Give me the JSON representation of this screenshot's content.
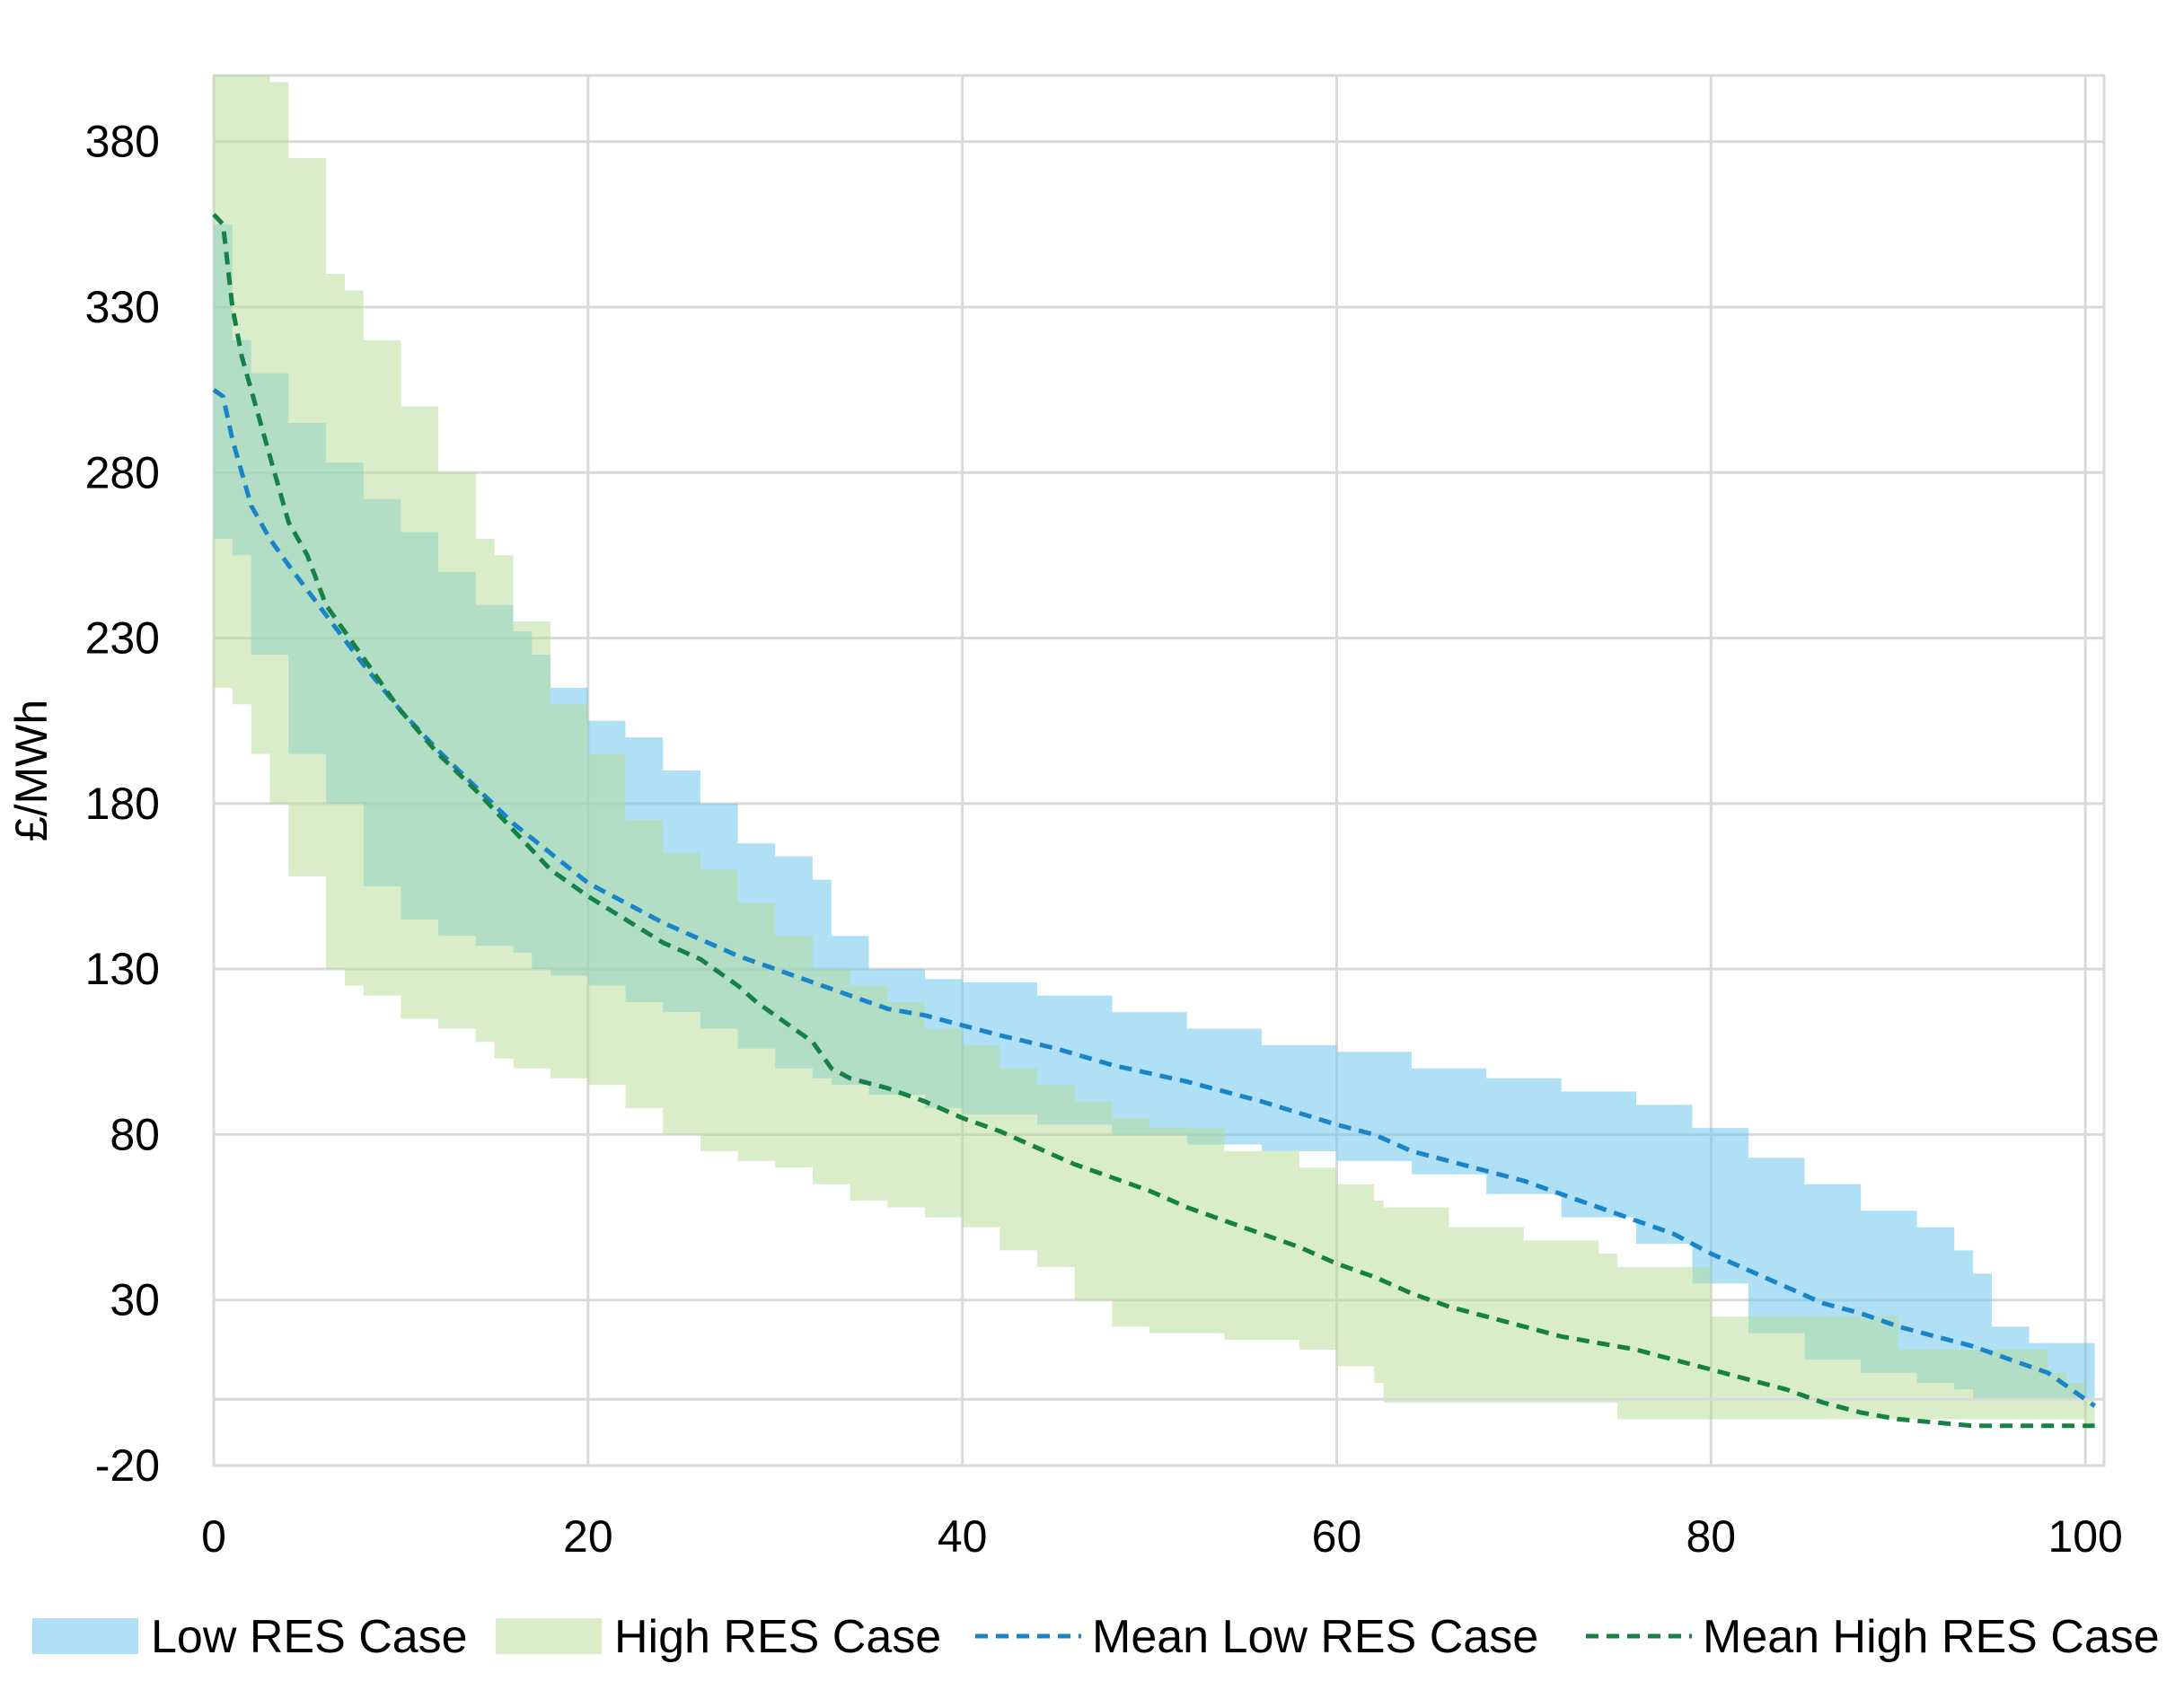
{
  "chart_data": {
    "type": "area",
    "title": "",
    "xlabel": "",
    "ylabel": "£/MWh",
    "xlim": [
      0,
      101
    ],
    "ylim": [
      -20,
      400
    ],
    "x_ticks": [
      0,
      20,
      40,
      60,
      80,
      100
    ],
    "x_tick_labels": [
      "0",
      "20",
      "40",
      "60",
      "80",
      "100"
    ],
    "y_ticks": [
      -20,
      30,
      80,
      130,
      180,
      230,
      280,
      330,
      380
    ],
    "y_tick_labels": [
      "-20",
      "30",
      "80",
      "130",
      "180",
      "230",
      "280",
      "330",
      "380"
    ],
    "grid": true,
    "zero_line": 0,
    "legend_position": "bottom",
    "colors": {
      "low_band": "#6ec6ee",
      "high_band": "#b4dc93",
      "low_mean": "#1a84c8",
      "high_mean": "#168045",
      "grid": "#d9d9d9"
    },
    "series": [
      {
        "name": "Low RES Case",
        "kind": "band",
        "x": [
          0,
          1,
          2,
          4,
          6,
          8,
          10,
          12,
          14,
          16,
          17,
          18,
          20,
          22,
          24,
          26,
          28,
          30,
          32,
          33,
          35,
          38,
          40,
          44,
          48,
          52,
          56,
          60,
          64,
          68,
          72,
          76,
          79,
          82,
          85,
          88,
          91,
          93,
          94,
          95,
          97,
          100,
          100.5
        ],
        "upper": [
          355,
          320,
          310,
          295,
          283,
          272,
          262,
          250,
          240,
          232,
          225,
          215,
          205,
          200,
          190,
          180,
          168,
          164,
          157,
          140,
          130,
          127,
          126,
          122,
          117,
          112,
          107,
          105,
          100,
          97,
          93,
          89,
          82,
          73,
          65,
          57,
          52,
          45,
          38,
          22,
          17,
          17,
          8
        ],
        "lower": [
          260,
          255,
          225,
          195,
          180,
          155,
          145,
          140,
          137,
          135,
          130,
          128,
          125,
          120,
          117,
          112,
          106,
          100,
          97,
          95,
          92,
          88,
          86,
          83,
          80,
          77,
          75,
          72,
          68,
          62,
          55,
          47,
          35,
          20,
          12,
          8,
          5,
          3,
          0,
          0,
          0,
          0,
          0
        ]
      },
      {
        "name": "High RES Case",
        "kind": "band",
        "x": [
          0,
          1,
          2,
          3,
          4,
          6,
          7,
          8,
          10,
          12,
          14,
          15,
          16,
          18,
          20,
          22,
          24,
          26,
          28,
          30,
          32,
          34,
          36,
          38,
          40,
          42,
          44,
          46,
          48,
          50,
          54,
          58,
          60,
          62,
          62.5,
          66,
          70,
          74,
          75,
          80,
          90,
          98,
          99,
          100,
          100.5
        ],
        "upper": [
          400,
          400,
          400,
          398,
          375,
          340,
          335,
          320,
          300,
          280,
          260,
          255,
          235,
          210,
          195,
          175,
          165,
          160,
          150,
          140,
          130,
          125,
          120,
          112,
          107,
          100,
          95,
          90,
          85,
          82,
          75,
          70,
          65,
          60,
          58,
          52,
          48,
          44,
          40,
          25,
          15,
          8,
          5,
          0,
          0
        ],
        "lower": [
          215,
          210,
          195,
          180,
          158,
          130,
          125,
          122,
          115,
          112,
          108,
          103,
          100,
          97,
          95,
          88,
          80,
          75,
          72,
          70,
          65,
          60,
          58,
          55,
          52,
          45,
          40,
          30,
          22,
          20,
          18,
          15,
          10,
          5,
          -1,
          -1,
          -1,
          -1,
          -6,
          -6,
          -6,
          -6,
          -6,
          -8,
          -10
        ]
      },
      {
        "name": "Mean Low RES Case",
        "kind": "line",
        "style": "dashed",
        "x": [
          0,
          0.5,
          1,
          2,
          3,
          4,
          6,
          8,
          10,
          12,
          14,
          16,
          18,
          20,
          22,
          24,
          26,
          28,
          30,
          32,
          34,
          36,
          38,
          40,
          42,
          45,
          48,
          52,
          56,
          60,
          62,
          64,
          66,
          68,
          70,
          72,
          74,
          76,
          78,
          80,
          82,
          84,
          86,
          88,
          90,
          92,
          94,
          96,
          98,
          99,
          100,
          100.5
        ],
        "values": [
          305,
          303,
          290,
          270,
          260,
          252,
          237,
          222,
          208,
          196,
          185,
          174,
          165,
          156,
          150,
          144,
          139,
          134,
          130,
          126,
          122,
          118,
          116,
          113,
          110,
          106,
          101,
          96,
          90,
          83,
          80,
          75,
          72,
          69,
          66,
          62,
          58,
          54,
          50,
          44,
          39,
          34,
          29,
          26,
          22,
          19,
          16,
          12,
          8,
          4,
          0,
          -2
        ]
      },
      {
        "name": "Mean High RES Case",
        "kind": "line",
        "style": "dashed",
        "x": [
          0,
          0.5,
          1,
          1.5,
          2,
          3,
          4,
          5,
          6,
          8,
          10,
          12,
          14,
          16,
          18,
          20,
          22,
          24,
          26,
          28,
          29,
          30,
          31,
          32,
          33,
          34,
          36,
          38,
          40,
          42,
          44,
          46,
          48,
          50,
          52,
          54,
          56,
          58,
          60,
          62,
          64,
          66,
          68,
          70,
          72,
          74,
          76,
          78,
          80,
          82,
          84,
          86,
          88,
          90,
          92,
          94,
          96,
          98,
          100,
          100.5
        ],
        "values": [
          358,
          355,
          330,
          315,
          305,
          285,
          265,
          255,
          240,
          224,
          208,
          195,
          184,
          172,
          160,
          152,
          145,
          138,
          133,
          125,
          120,
          116,
          112,
          108,
          100,
          97,
          94,
          90,
          85,
          81,
          76,
          71,
          67,
          63,
          58,
          54,
          50,
          46,
          41,
          37,
          32,
          28,
          25,
          22,
          19,
          17,
          15,
          12,
          9,
          6,
          3,
          -1,
          -4,
          -6,
          -7,
          -8,
          -8,
          -8,
          -8,
          -8
        ]
      }
    ]
  }
}
